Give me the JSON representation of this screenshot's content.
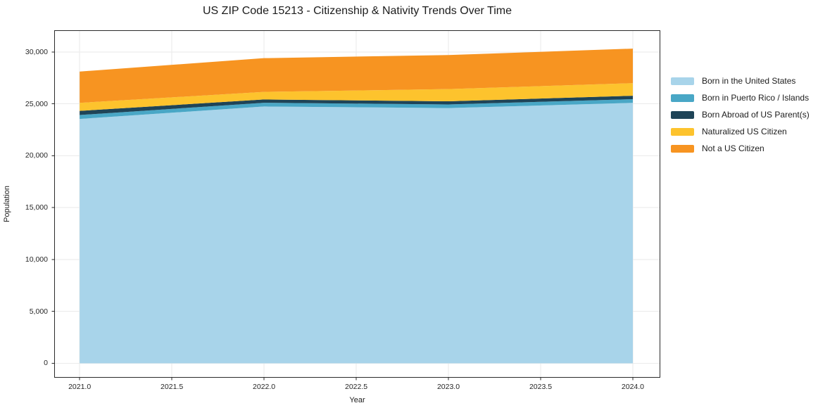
{
  "chart_data": {
    "type": "area",
    "stacked": true,
    "title": "US ZIP Code 15213 - Citizenship & Nativity Trends Over Time",
    "xlabel": "Year",
    "ylabel": "Population",
    "x": [
      2021,
      2022,
      2023,
      2024
    ],
    "series": [
      {
        "name": "Born in the United States",
        "color": "#a8d4ea",
        "values": [
          23550,
          24750,
          24600,
          25100
        ]
      },
      {
        "name": "Born in Puerto Rico / Islands",
        "color": "#49a7c6",
        "values": [
          380,
          360,
          350,
          360
        ]
      },
      {
        "name": "Born Abroad of US Parent(s)",
        "color": "#1f4457",
        "values": [
          400,
          320,
          300,
          330
        ]
      },
      {
        "name": "Naturalized US Citizen",
        "color": "#fdc32d",
        "values": [
          770,
          730,
          1180,
          1210
        ]
      },
      {
        "name": "Not a US Citizen",
        "color": "#f79421",
        "values": [
          3020,
          3250,
          3280,
          3330
        ]
      }
    ],
    "xlim": [
      2020.862,
      2024.149
    ],
    "ylim": [
      -1390,
      32100
    ],
    "x_ticks": {
      "values": [
        2021.0,
        2021.5,
        2022.0,
        2022.5,
        2023.0,
        2023.5,
        2024.0
      ],
      "labels": [
        "2021.0",
        "2021.5",
        "2022.0",
        "2022.5",
        "2023.0",
        "2023.5",
        "2024.0"
      ]
    },
    "y_ticks": {
      "values": [
        0,
        5000,
        10000,
        15000,
        20000,
        25000,
        30000
      ],
      "labels": [
        "0",
        "5,000",
        "10,000",
        "15,000",
        "20,000",
        "25,000",
        "30,000"
      ]
    },
    "grid": true,
    "legend_position": "right-outside"
  },
  "colors": {
    "grid": "#eaeaea",
    "spine": "#2a2a2a",
    "tick": "#262626",
    "background": "#ffffff"
  }
}
